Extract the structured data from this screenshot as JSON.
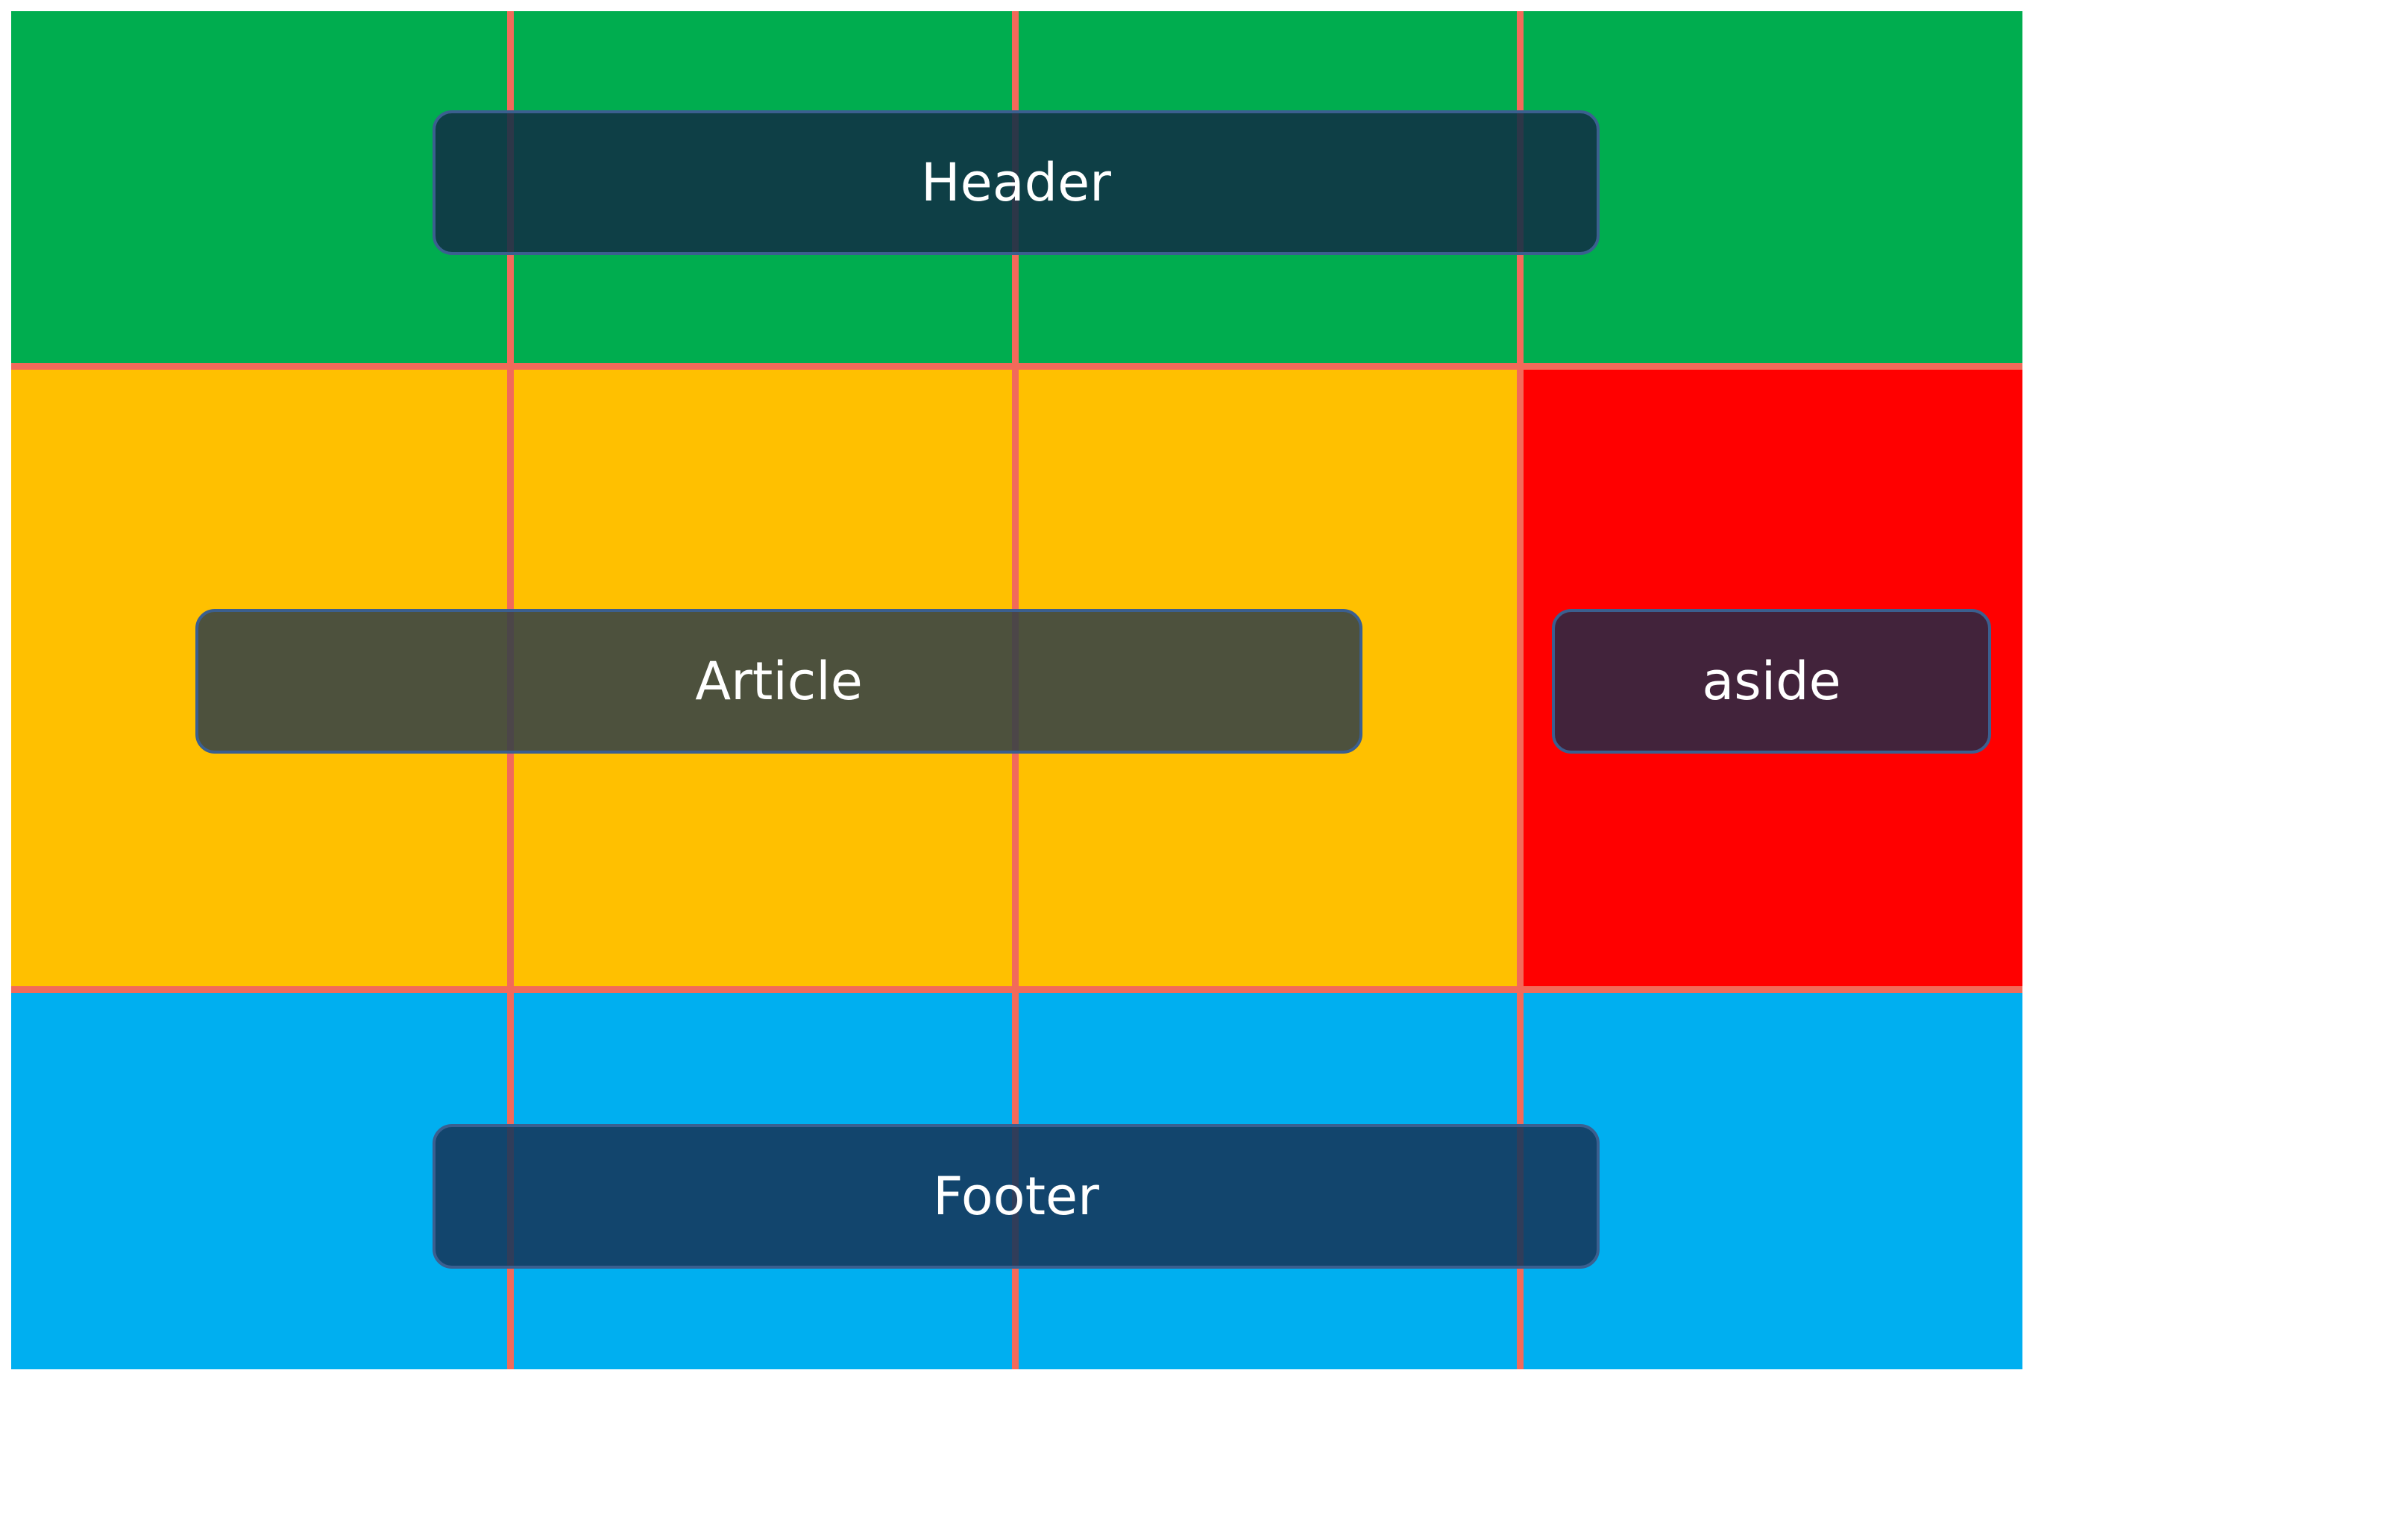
{
  "colors": {
    "header": "#00ad4f",
    "article": "#ffc000",
    "aside": "#ff0000",
    "footer": "#00aff0",
    "gridlines": "#f26a5a"
  },
  "labels": {
    "header": "Header",
    "article": "Article",
    "aside": "aside",
    "footer": "Footer"
  }
}
